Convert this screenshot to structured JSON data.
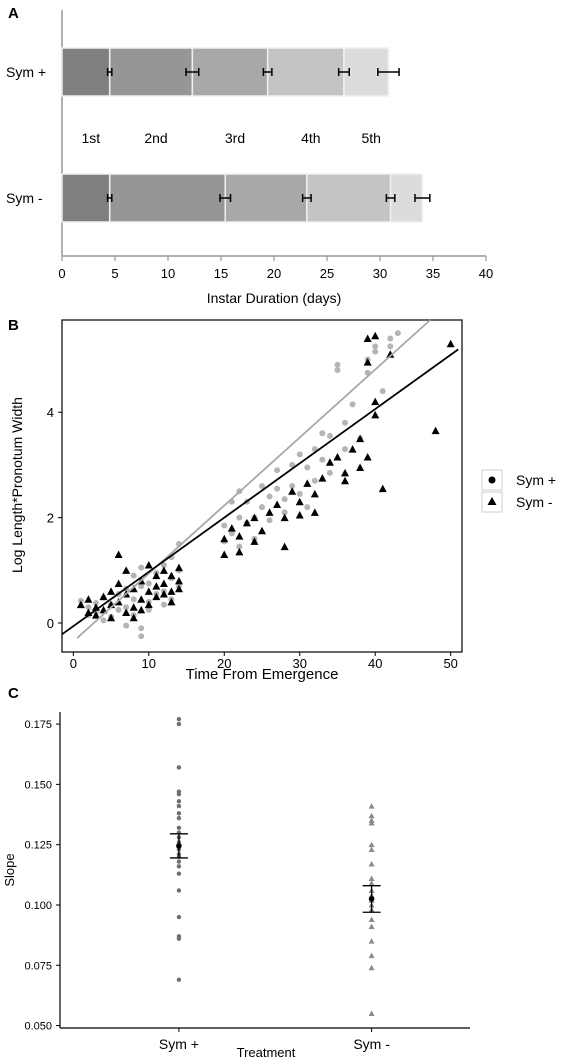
{
  "panels": {
    "a": {
      "letter": "A"
    },
    "b": {
      "letter": "B"
    },
    "c": {
      "letter": "C"
    }
  },
  "colors": {
    "instar_fills": [
      "#7f7f7f",
      "#969696",
      "#a8a8a8",
      "#c4c4c4",
      "#dcdcdc"
    ],
    "sym_plus_points_b": "#b5b5b5",
    "sym_minus_points_b": "#000000",
    "fit_sym_plus": "#a8a8a8",
    "fit_sym_minus": "#000000",
    "points_c_sym_plus": "#6f6f6f",
    "points_c_sym_minus": "#8a8a8a"
  },
  "chart_data": [
    {
      "panel": "A",
      "type": "bar",
      "stacked": true,
      "orientation": "horizontal",
      "categories": [
        "Sym +",
        "Sym -"
      ],
      "stage_labels": [
        "1st",
        "2nd",
        "3rd",
        "4th",
        "5th"
      ],
      "series": [
        {
          "name": "1st",
          "values": [
            4.5,
            4.5
          ],
          "error": [
            0.2,
            0.2
          ]
        },
        {
          "name": "2nd",
          "values": [
            7.8,
            10.9
          ],
          "error": [
            0.6,
            0.5
          ]
        },
        {
          "name": "3rd",
          "values": [
            7.1,
            7.7
          ],
          "error": [
            0.4,
            0.4
          ]
        },
        {
          "name": "4th",
          "values": [
            7.2,
            7.9
          ],
          "error": [
            0.5,
            0.4
          ]
        },
        {
          "name": "5th",
          "values": [
            4.2,
            3.0
          ],
          "error": [
            1.0,
            0.7
          ]
        }
      ],
      "xlabel": "Instar Duration (days)",
      "xlim": [
        0,
        40
      ],
      "xticks": [
        0,
        5,
        10,
        15,
        20,
        25,
        30,
        35,
        40
      ]
    },
    {
      "panel": "B",
      "type": "scatter",
      "xlabel": "Time From Emergence",
      "ylabel": "Log Length*Pronotum Width",
      "xlim": [
        -1.5,
        51.5
      ],
      "ylim": [
        -0.55,
        5.75
      ],
      "xticks": [
        0,
        10,
        20,
        30,
        40,
        50
      ],
      "yticks": [
        0,
        2,
        4
      ],
      "legend": {
        "position": "right",
        "entries": [
          "Sym +",
          "Sym -"
        ]
      },
      "series": [
        {
          "name": "Sym +",
          "marker": "circle",
          "fit": {
            "slope": 0.129,
            "intercept": -0.35,
            "x_range": [
              0.5,
              51
            ]
          },
          "points": [
            [
              1,
              0.42
            ],
            [
              2,
              0.3
            ],
            [
              2,
              0.15
            ],
            [
              3,
              0.2
            ],
            [
              3,
              0.38
            ],
            [
              4,
              0.05
            ],
            [
              4,
              0.48
            ],
            [
              5,
              0.35
            ],
            [
              5,
              0.12
            ],
            [
              6,
              0.25
            ],
            [
              6,
              0.55
            ],
            [
              7,
              0.3
            ],
            [
              7,
              -0.05
            ],
            [
              7,
              0.65
            ],
            [
              8,
              0.9
            ],
            [
              8,
              0.45
            ],
            [
              8,
              0.15
            ],
            [
              9,
              0.7
            ],
            [
              9,
              1.05
            ],
            [
              9,
              -0.1
            ],
            [
              9,
              -0.25
            ],
            [
              10,
              0.4
            ],
            [
              10,
              0.25
            ],
            [
              10,
              0.75
            ],
            [
              11,
              0.55
            ],
            [
              11,
              0.95
            ],
            [
              12,
              0.6
            ],
            [
              12,
              0.35
            ],
            [
              12,
              1.1
            ],
            [
              13,
              0.85
            ],
            [
              13,
              0.45
            ],
            [
              13,
              1.25
            ],
            [
              14,
              0.7
            ],
            [
              14,
              1.5
            ],
            [
              14,
              1.0
            ],
            [
              20,
              1.85
            ],
            [
              20,
              1.55
            ],
            [
              21,
              2.3
            ],
            [
              21,
              1.7
            ],
            [
              22,
              2.0
            ],
            [
              22,
              1.45
            ],
            [
              22,
              2.5
            ],
            [
              23,
              1.9
            ],
            [
              23,
              2.3
            ],
            [
              24,
              2.0
            ],
            [
              24,
              1.6
            ],
            [
              25,
              2.6
            ],
            [
              25,
              2.2
            ],
            [
              26,
              1.95
            ],
            [
              26,
              2.4
            ],
            [
              27,
              2.55
            ],
            [
              27,
              2.9
            ],
            [
              28,
              2.35
            ],
            [
              28,
              2.1
            ],
            [
              29,
              3.0
            ],
            [
              29,
              2.6
            ],
            [
              30,
              3.2
            ],
            [
              30,
              2.45
            ],
            [
              31,
              2.95
            ],
            [
              31,
              2.2
            ],
            [
              32,
              3.3
            ],
            [
              32,
              2.7
            ],
            [
              33,
              3.6
            ],
            [
              33,
              3.1
            ],
            [
              34,
              3.55
            ],
            [
              34,
              2.85
            ],
            [
              35,
              4.8
            ],
            [
              35,
              4.9
            ],
            [
              36,
              3.3
            ],
            [
              36,
              3.8
            ],
            [
              37,
              4.15
            ],
            [
              38,
              3.5
            ],
            [
              39,
              4.75
            ],
            [
              39,
              5.0
            ],
            [
              40,
              5.25
            ],
            [
              40,
              5.15
            ],
            [
              41,
              4.4
            ],
            [
              42,
              5.4
            ],
            [
              42,
              5.25
            ],
            [
              43,
              5.5
            ]
          ]
        },
        {
          "name": "Sym -",
          "marker": "triangle",
          "fit": {
            "slope": 0.103,
            "intercept": -0.06,
            "x_range": [
              -1.5,
              51
            ]
          },
          "points": [
            [
              1,
              0.35
            ],
            [
              2,
              0.2
            ],
            [
              2,
              0.45
            ],
            [
              3,
              0.3
            ],
            [
              3,
              0.15
            ],
            [
              4,
              0.5
            ],
            [
              4,
              0.25
            ],
            [
              5,
              0.35
            ],
            [
              5,
              0.6
            ],
            [
              5,
              0.1
            ],
            [
              6,
              1.3
            ],
            [
              6,
              0.75
            ],
            [
              6,
              0.4
            ],
            [
              7,
              0.2
            ],
            [
              7,
              0.55
            ],
            [
              7,
              1.0
            ],
            [
              8,
              0.3
            ],
            [
              8,
              0.65
            ],
            [
              8,
              0.1
            ],
            [
              9,
              0.45
            ],
            [
              9,
              0.8
            ],
            [
              9,
              0.25
            ],
            [
              10,
              0.6
            ],
            [
              10,
              0.35
            ],
            [
              10,
              1.1
            ],
            [
              11,
              0.7
            ],
            [
              11,
              0.5
            ],
            [
              11,
              0.9
            ],
            [
              12,
              0.75
            ],
            [
              12,
              0.55
            ],
            [
              12,
              1.0
            ],
            [
              13,
              0.6
            ],
            [
              13,
              0.9
            ],
            [
              13,
              0.4
            ],
            [
              14,
              0.8
            ],
            [
              14,
              1.05
            ],
            [
              14,
              0.65
            ],
            [
              20,
              1.6
            ],
            [
              20,
              1.3
            ],
            [
              21,
              1.8
            ],
            [
              22,
              1.65
            ],
            [
              22,
              1.35
            ],
            [
              23,
              1.9
            ],
            [
              24,
              2.0
            ],
            [
              24,
              1.55
            ],
            [
              25,
              1.75
            ],
            [
              26,
              2.1
            ],
            [
              27,
              2.25
            ],
            [
              28,
              1.45
            ],
            [
              28,
              2.0
            ],
            [
              29,
              2.5
            ],
            [
              30,
              2.05
            ],
            [
              30,
              2.3
            ],
            [
              31,
              2.65
            ],
            [
              32,
              2.1
            ],
            [
              32,
              2.45
            ],
            [
              33,
              2.75
            ],
            [
              34,
              3.05
            ],
            [
              35,
              3.15
            ],
            [
              36,
              2.7
            ],
            [
              36,
              2.85
            ],
            [
              37,
              3.3
            ],
            [
              38,
              3.5
            ],
            [
              38,
              2.95
            ],
            [
              39,
              5.4
            ],
            [
              39,
              4.95
            ],
            [
              39,
              3.15
            ],
            [
              40,
              3.95
            ],
            [
              40,
              4.2
            ],
            [
              40,
              5.45
            ],
            [
              41,
              2.55
            ],
            [
              42,
              5.1
            ],
            [
              48,
              3.65
            ],
            [
              50,
              5.3
            ]
          ]
        }
      ]
    },
    {
      "panel": "C",
      "type": "scatter",
      "xlabel": "Treatment",
      "ylabel": "Slope",
      "categories": [
        "Sym +",
        "Sym -"
      ],
      "ylim": [
        0.049,
        0.18
      ],
      "yticks": [
        0.05,
        0.075,
        0.1,
        0.125,
        0.15,
        0.175
      ],
      "ytick_labels": [
        "0.050",
        "0.075",
        "0.100",
        "0.125",
        "0.150",
        "0.175"
      ],
      "series": [
        {
          "name": "Sym +",
          "mean": 0.1245,
          "se": 0.005,
          "values": [
            0.177,
            0.175,
            0.157,
            0.147,
            0.146,
            0.143,
            0.141,
            0.138,
            0.136,
            0.132,
            0.13,
            0.128,
            0.126,
            0.124,
            0.123,
            0.121,
            0.12,
            0.118,
            0.116,
            0.113,
            0.106,
            0.095,
            0.087,
            0.086,
            0.069
          ]
        },
        {
          "name": "Sym -",
          "mean": 0.1025,
          "se": 0.0055,
          "values": [
            0.141,
            0.137,
            0.135,
            0.134,
            0.125,
            0.123,
            0.117,
            0.111,
            0.109,
            0.106,
            0.104,
            0.102,
            0.1,
            0.098,
            0.094,
            0.091,
            0.085,
            0.079,
            0.074,
            0.055
          ]
        }
      ]
    }
  ]
}
